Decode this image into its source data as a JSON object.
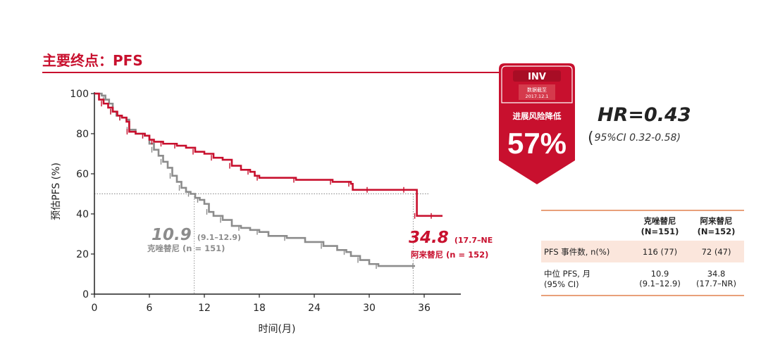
{
  "header": {
    "title": "主要终点：PFS"
  },
  "badge": {
    "label": "INV",
    "cutoff_line1": "数据截至",
    "cutoff_line2": "2017.12.1",
    "risk_text": "进展风险降低",
    "percent": "57%"
  },
  "hazard": {
    "hr": "HR=0.43",
    "ci_open": "(",
    "ci": "95%CI 0.32-0.58)"
  },
  "table": {
    "col1": "克唑替尼",
    "col1_n": "(N=151)",
    "col2": "阿来替尼",
    "col2_n": "(N=152)",
    "row1_label": "PFS 事件数, n(%)",
    "row1_v1": "116 (77)",
    "row1_v2": "72 (47)",
    "row2_label1": "中位 PFS, 月",
    "row2_label2": "(95% CI)",
    "row2_v1a": "10.9",
    "row2_v1b": "(9.1–12.9)",
    "row2_v2a": "34.8",
    "row2_v2b": "(17.7–NR)"
  },
  "colors": {
    "alectinib": "#c8102e",
    "crizotinib": "#8c8c8c",
    "accent": "#c8102e",
    "table_rule": "#e8a07a",
    "table_fill": "#fbe6dc"
  },
  "chart_data": {
    "type": "line",
    "xlabel": "时间(月)",
    "ylabel": "预估PFS (%)",
    "xlim": [
      0,
      40
    ],
    "ylim": [
      0,
      100
    ],
    "xticks": [
      "0",
      "6",
      "12",
      "18",
      "24",
      "30",
      "36"
    ],
    "yticks": [
      "0",
      "20",
      "40",
      "60",
      "80",
      "100"
    ],
    "median_y": 50,
    "series": [
      {
        "name": "阿来替尼",
        "n_label": "阿来替尼 (n = 152)",
        "median": "34.8",
        "median_ci": "(17.7–NE)",
        "points": [
          [
            0,
            100
          ],
          [
            0.5,
            97
          ],
          [
            1,
            95
          ],
          [
            1.5,
            93
          ],
          [
            2,
            91
          ],
          [
            2.5,
            89
          ],
          [
            3,
            88
          ],
          [
            3.5,
            86
          ],
          [
            3.8,
            81
          ],
          [
            4.5,
            80
          ],
          [
            5.5,
            79
          ],
          [
            6,
            77
          ],
          [
            6.5,
            76
          ],
          [
            7,
            76
          ],
          [
            7.5,
            75
          ],
          [
            8,
            75
          ],
          [
            9,
            74
          ],
          [
            10,
            73
          ],
          [
            11,
            71
          ],
          [
            12,
            70
          ],
          [
            13,
            68
          ],
          [
            14,
            67
          ],
          [
            15,
            64
          ],
          [
            16,
            62
          ],
          [
            17,
            61
          ],
          [
            17.5,
            59
          ],
          [
            18,
            58
          ],
          [
            20,
            58
          ],
          [
            22,
            57
          ],
          [
            24,
            57
          ],
          [
            26,
            56
          ],
          [
            27.5,
            56
          ],
          [
            28,
            55
          ],
          [
            28.2,
            52
          ],
          [
            30,
            52
          ],
          [
            32,
            52
          ],
          [
            34,
            52
          ],
          [
            35,
            52
          ],
          [
            35.2,
            39
          ],
          [
            36,
            39
          ],
          [
            37,
            39
          ],
          [
            38,
            39
          ]
        ]
      },
      {
        "name": "克唑替尼",
        "n_label": "克唑替尼 (n = 151)",
        "median": "10.9",
        "median_ci": "(9.1–12.9)",
        "points": [
          [
            0,
            100
          ],
          [
            0.8,
            99
          ],
          [
            1.2,
            97
          ],
          [
            1.6,
            95
          ],
          [
            2,
            91
          ],
          [
            2.4,
            89
          ],
          [
            3,
            88
          ],
          [
            3.5,
            87
          ],
          [
            3.8,
            82
          ],
          [
            4.5,
            80
          ],
          [
            5.5,
            79
          ],
          [
            6,
            75
          ],
          [
            6.5,
            72
          ],
          [
            7,
            69
          ],
          [
            7.5,
            66
          ],
          [
            8,
            63
          ],
          [
            8.5,
            59
          ],
          [
            9,
            56
          ],
          [
            9.5,
            53
          ],
          [
            10,
            51
          ],
          [
            10.5,
            50
          ],
          [
            11,
            48
          ],
          [
            11.5,
            47
          ],
          [
            12,
            45
          ],
          [
            12.5,
            41
          ],
          [
            13,
            39
          ],
          [
            14,
            37
          ],
          [
            15,
            34
          ],
          [
            16,
            33
          ],
          [
            17,
            32
          ],
          [
            18,
            31
          ],
          [
            19,
            29
          ],
          [
            21,
            28
          ],
          [
            23,
            26
          ],
          [
            25,
            24
          ],
          [
            26.5,
            22
          ],
          [
            27.5,
            21
          ],
          [
            28,
            19
          ],
          [
            29,
            17
          ],
          [
            30,
            15
          ],
          [
            31,
            14
          ],
          [
            33,
            14
          ],
          [
            35,
            14
          ]
        ]
      }
    ]
  }
}
